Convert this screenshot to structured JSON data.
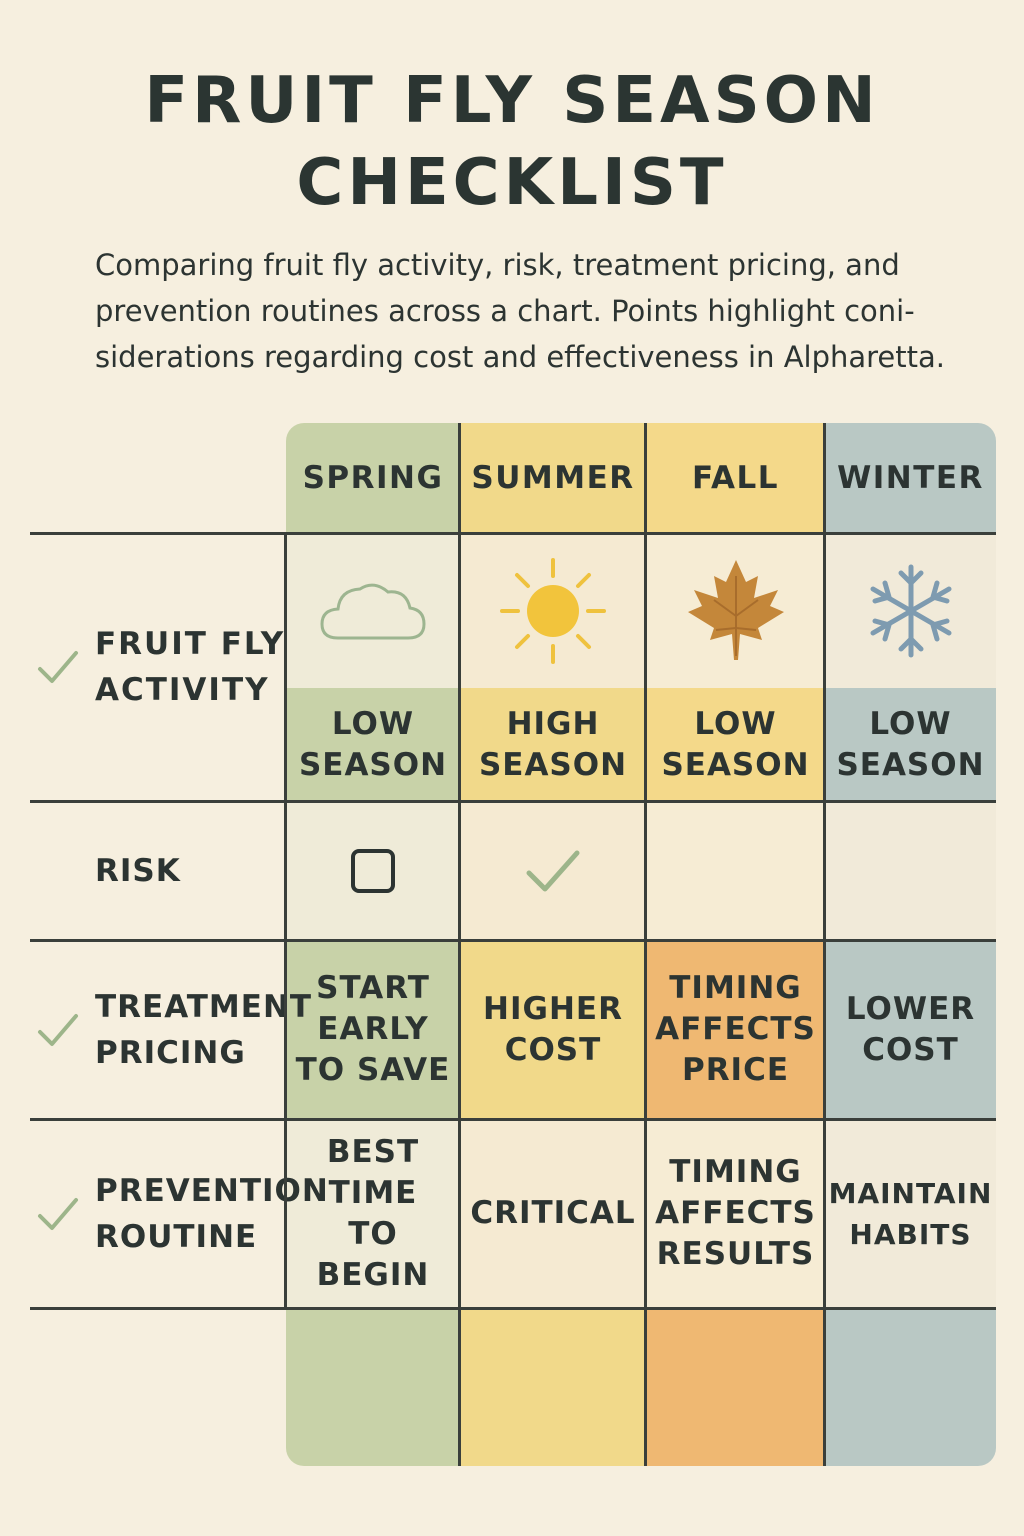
{
  "title_lines": [
    "FRUIT FLY SEASON",
    "CHECKLIST"
  ],
  "subtitle_lines": [
    "Comparing fruit fly activity, risk, treatment pricing, and",
    "prevention routines across a chart. Points highlight coni-",
    "siderations regarding cost and effectiveness in Alpharetta."
  ],
  "colors": {
    "background": "#f6efdf",
    "spring": "#c8d2a8",
    "summer": "#f1d98a",
    "fall_header": "#f4d98a",
    "fall": "#efb872",
    "winter": "#b9c8c4",
    "check": "#9db58a"
  },
  "seasons": [
    {
      "name": "SPRING",
      "activity_icon": "cloud-icon",
      "activity": [
        "LOW",
        "SEASON"
      ],
      "risk_icon": "empty-checkbox-icon",
      "pricing": [
        "START",
        "EARLY",
        "TO SAVE"
      ],
      "prevention": [
        "BEST",
        "TIME",
        "TO BEGIN"
      ]
    },
    {
      "name": "SUMMER",
      "activity_icon": "sun-icon",
      "activity": [
        "HIGH",
        "SEASON"
      ],
      "risk_icon": "checkmark-icon",
      "pricing": [
        "HIGHER",
        "COST"
      ],
      "prevention": [
        "CRITICAL"
      ]
    },
    {
      "name": "FALL",
      "activity_icon": "maple-leaf-icon",
      "activity": [
        "LOW",
        "SEASON"
      ],
      "risk_icon": "",
      "pricing": [
        "TIMING",
        "AFFECTS",
        "PRICE"
      ],
      "prevention": [
        "TIMING",
        "AFFECTS",
        "RESULTS"
      ]
    },
    {
      "name": "WINTER",
      "activity_icon": "snowflake-icon",
      "activity": [
        "LOW",
        "SEASON"
      ],
      "risk_icon": "",
      "pricing": [
        "LOWER",
        "COST"
      ],
      "prevention": [
        "MAINTAIN",
        "HABITS"
      ]
    }
  ],
  "rows": [
    {
      "label": [
        "FRUIT FLY",
        "ACTIVITY"
      ],
      "checked": true
    },
    {
      "label": [
        "RISK"
      ],
      "checked": false
    },
    {
      "label": [
        "TREATMENT",
        "PRICING"
      ],
      "checked": true
    },
    {
      "label": [
        "PREVENTION",
        "ROUTINE"
      ],
      "checked": true
    }
  ]
}
